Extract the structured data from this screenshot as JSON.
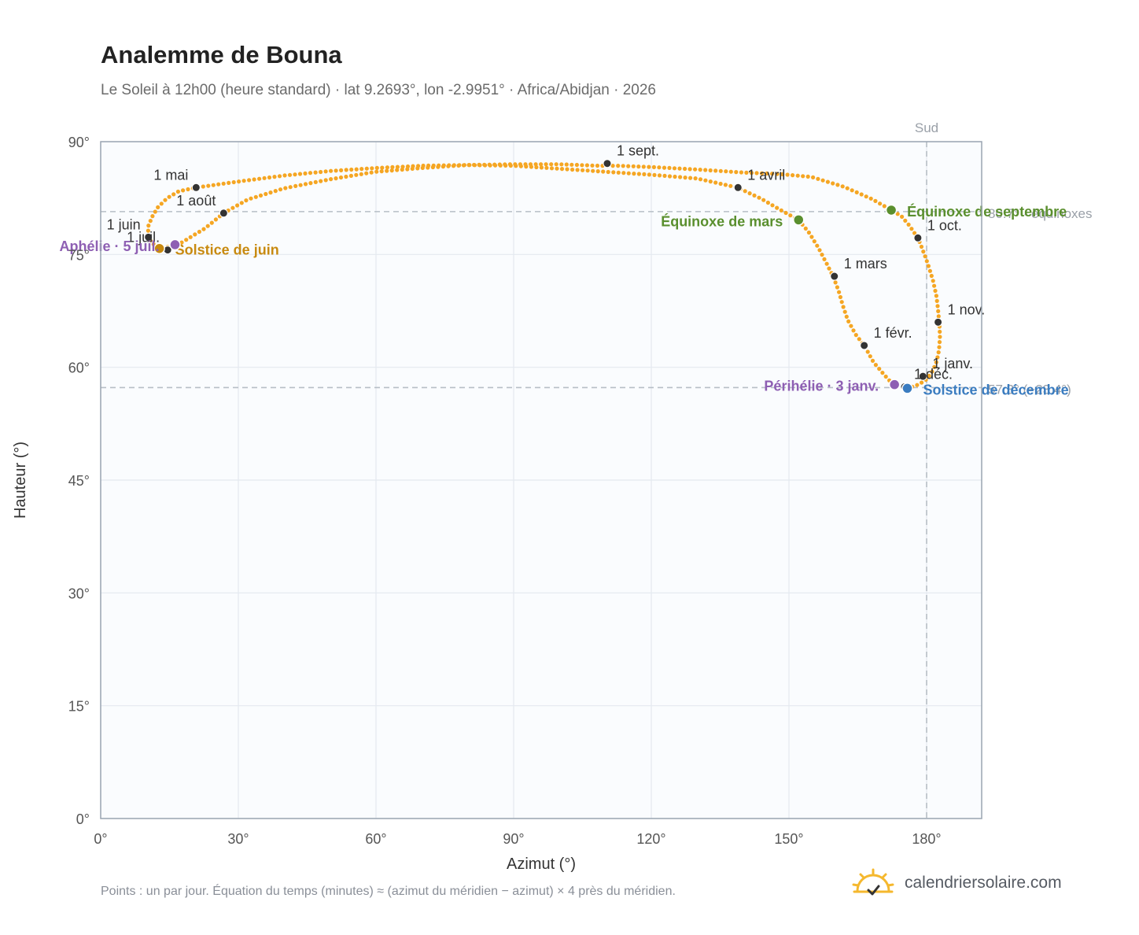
{
  "chart_data": {
    "type": "scatter",
    "title": "Analemme de Bouna",
    "subtitle": "Le Soleil à 12h00 (heure standard) · lat 9.2693°, lon -2.9951° · Africa/Abidjan · 2026",
    "xlabel": "Azimut (°)",
    "ylabel": "Hauteur (°)",
    "xlim": [
      0,
      192
    ],
    "ylim": [
      0,
      90
    ],
    "xticks": [
      0,
      30,
      60,
      90,
      120,
      150,
      180
    ],
    "yticks": [
      0,
      15,
      30,
      45,
      60,
      75,
      90
    ],
    "xtick_labels": [
      "0°",
      "30°",
      "60°",
      "90°",
      "120°",
      "150°",
      "180°"
    ],
    "ytick_labels": [
      "0°",
      "15°",
      "30°",
      "45°",
      "60°",
      "75°",
      "90°"
    ],
    "grid": true,
    "south_line": {
      "x": 180,
      "label": "Sud"
    },
    "reference_lines": [
      {
        "y": 80.7,
        "label": "80.7° · équinoxes"
      },
      {
        "y": 57.3,
        "label": "57.3° (−23.4°)"
      }
    ],
    "series": [
      {
        "name": "",
        "color": "#f5a623",
        "points": [
          [
            175.8,
            57.2
          ],
          [
            178.2,
            57.7
          ],
          [
            180.0,
            58.4
          ],
          [
            181.3,
            59.5
          ],
          [
            182.2,
            60.8
          ],
          [
            182.7,
            62.3
          ],
          [
            182.9,
            64.0
          ],
          [
            182.8,
            65.7
          ],
          [
            182.5,
            67.6
          ],
          [
            182.1,
            69.6
          ],
          [
            181.4,
            71.5
          ],
          [
            180.3,
            73.7
          ],
          [
            179.1,
            75.7
          ],
          [
            178.1,
            77.2
          ],
          [
            176.3,
            78.8
          ],
          [
            174.5,
            80.1
          ],
          [
            172.3,
            80.9
          ],
          [
            168.0,
            82.4
          ],
          [
            162.0,
            84.0
          ],
          [
            155.0,
            85.3
          ],
          [
            148.0,
            85.7
          ],
          [
            140.0,
            85.9
          ],
          [
            130.0,
            86.3
          ],
          [
            121.0,
            86.6
          ],
          [
            113.0,
            86.8
          ],
          [
            108.6,
            86.8
          ],
          [
            100.0,
            87.0
          ],
          [
            90.0,
            87.0
          ],
          [
            80.0,
            86.9
          ],
          [
            70.0,
            86.5
          ],
          [
            60.0,
            86.0
          ],
          [
            50.0,
            85.0
          ],
          [
            40.0,
            83.8
          ],
          [
            32.0,
            82.3
          ],
          [
            26.8,
            80.5
          ],
          [
            22.8,
            78.5
          ],
          [
            18.5,
            76.9
          ],
          [
            16.0,
            76.0
          ],
          [
            14.2,
            76.0
          ],
          [
            12.8,
            75.8
          ],
          [
            11.2,
            76.5
          ],
          [
            10.3,
            77.5
          ],
          [
            10.4,
            78.8
          ],
          [
            11.2,
            80.0
          ],
          [
            12.5,
            81.3
          ],
          [
            14.5,
            82.5
          ],
          [
            17.0,
            83.4
          ],
          [
            20.8,
            83.9
          ],
          [
            30.0,
            84.7
          ],
          [
            40.0,
            85.5
          ],
          [
            50.0,
            86.1
          ],
          [
            60.0,
            86.5
          ],
          [
            70.0,
            86.8
          ],
          [
            80.0,
            86.9
          ],
          [
            90.0,
            86.8
          ],
          [
            100.0,
            86.4
          ],
          [
            110.0,
            86.0
          ],
          [
            120.0,
            85.6
          ],
          [
            130.0,
            85.1
          ],
          [
            138.8,
            83.9
          ],
          [
            144.0,
            82.4
          ],
          [
            148.5,
            80.8
          ],
          [
            152.1,
            79.6
          ],
          [
            154.5,
            77.8
          ],
          [
            156.5,
            75.8
          ],
          [
            158.2,
            73.8
          ],
          [
            159.7,
            72.0
          ],
          [
            160.8,
            70.2
          ],
          [
            161.7,
            68.3
          ],
          [
            162.8,
            66.3
          ],
          [
            164.5,
            64.4
          ],
          [
            166.5,
            62.8
          ],
          [
            168.4,
            60.7
          ],
          [
            170.5,
            59.2
          ],
          [
            172.8,
            57.6
          ],
          [
            175.8,
            57.2
          ]
        ]
      }
    ],
    "month_markers": [
      {
        "label": "1 janv.",
        "x": 179.2,
        "y": 58.8
      },
      {
        "label": "1 févr.",
        "x": 166.4,
        "y": 62.9
      },
      {
        "label": "1 mars",
        "x": 159.9,
        "y": 72.1
      },
      {
        "label": "1 avril",
        "x": 138.9,
        "y": 83.9
      },
      {
        "label": "1 mai",
        "x": 20.8,
        "y": 83.9
      },
      {
        "label": "1 juin",
        "x": 10.4,
        "y": 77.3
      },
      {
        "label": "1 juil.",
        "x": 14.6,
        "y": 75.6
      },
      {
        "label": "1 août",
        "x": 26.8,
        "y": 80.5
      },
      {
        "label": "1 sept.",
        "x": 110.4,
        "y": 87.1
      },
      {
        "label": "1 oct.",
        "x": 178.1,
        "y": 77.2
      },
      {
        "label": "1 nov.",
        "x": 182.5,
        "y": 66.0
      },
      {
        "label": "1 déc.",
        "x": 175.2,
        "y": 57.4
      }
    ],
    "key_events": [
      {
        "label": "Équinoxe de mars",
        "x": 152.1,
        "y": 79.6,
        "color": "#5a8f2e"
      },
      {
        "label": "Équinoxe de septembre",
        "x": 172.3,
        "y": 80.9,
        "color": "#5a8f2e"
      },
      {
        "label": "Solstice de juin",
        "x": 12.8,
        "y": 75.8,
        "color": "#c88a10"
      },
      {
        "label": "Solstice de décembre",
        "x": 175.8,
        "y": 57.2,
        "color": "#3a7cc0"
      },
      {
        "label": "Aphélie · 5 juil.",
        "x": 16.2,
        "y": 76.3,
        "color": "#8e5fb3"
      },
      {
        "label": "Périhélie · 3 janv.",
        "x": 173.0,
        "y": 57.7,
        "color": "#8e5fb3"
      }
    ]
  },
  "footnote": "Points : un par jour. Équation du temps (minutes) ≈ (azimut du méridien − azimut) × 4 près du méridien.",
  "brand": {
    "name": "calendriersolaire.com",
    "icon": "sun-check-icon",
    "icon_color": "#f5b82e",
    "check_color": "#333333"
  },
  "colors": {
    "plot_bg": "#fafcfe",
    "frame": "#9aa5b1",
    "grid": "#e4e9ef",
    "ref_line": "#b7bec6",
    "month_dot": "#333333"
  }
}
